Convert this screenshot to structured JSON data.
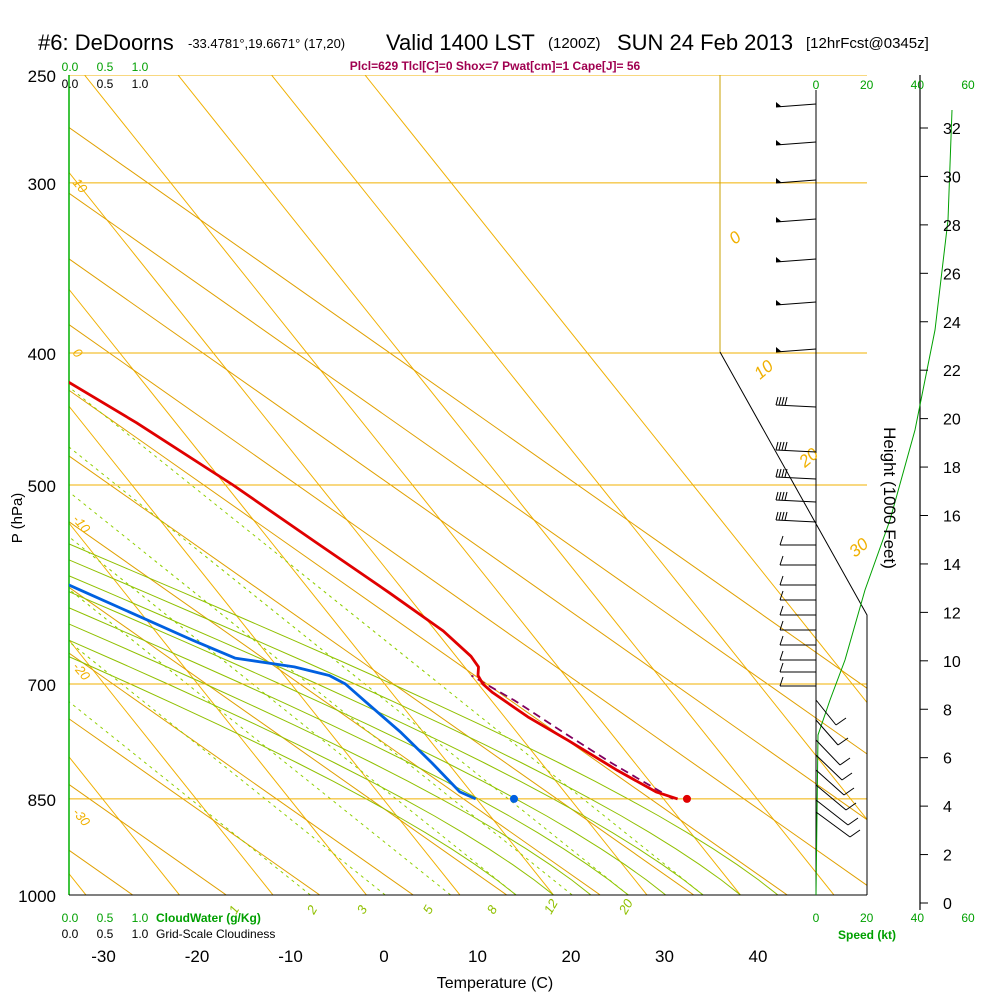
{
  "header": {
    "station": "#6: DeDoorns",
    "coords": "-33.4781°,19.6671° (17,20)",
    "valid": "Valid 1400 LST",
    "utc": "(1200Z)",
    "date": "SUN 24 Feb 2013",
    "forecast": "[12hrFcst@0345z]",
    "params": "Plcl=629 Tlcl[C]=0 Shox=7 Pwat[cm]=1 Cape[J]= 56"
  },
  "colors": {
    "isotherm": "#f0b000",
    "adiabat": "#e0a000",
    "moist_adiabat": "#90c000",
    "mixing": "#90d000",
    "temperature": "#e00000",
    "dewpoint": "#0060e0",
    "parcel": "#800060",
    "green": "#00a000",
    "params_text": "#a00050"
  },
  "chart_data": {
    "type": "skew-t",
    "title": "#6: DeDoorns -33.4781°,19.6671° (17,20) Valid 1400 LST (1200Z) SUN 24 Feb 2013 [12hrFcst@0345z]",
    "xlabel": "Temperature (C)",
    "ylabel": "P (hPa)",
    "y2label": "Height (1000 Feet)",
    "pressure_ticks": [
      "250",
      "300",
      "400",
      "500",
      "700",
      "850",
      "1000"
    ],
    "pressure_values": [
      250,
      300,
      400,
      500,
      700,
      850,
      1000
    ],
    "temp_ticks": [
      "-30",
      "-20",
      "-10",
      "0",
      "10",
      "20",
      "30",
      "40"
    ],
    "temp_values": [
      -30,
      -20,
      -10,
      0,
      10,
      20,
      30,
      40
    ],
    "height_ticks": [
      "0",
      "2",
      "4",
      "6",
      "8",
      "10",
      "12",
      "14",
      "16",
      "18",
      "20",
      "22",
      "24",
      "26",
      "28",
      "30",
      "32"
    ],
    "height_values": [
      0,
      2,
      4,
      6,
      8,
      10,
      12,
      14,
      16,
      18,
      20,
      22,
      24,
      26,
      28,
      30,
      32
    ],
    "isotherm_labels": [
      {
        "text": "10",
        "temp": -10,
        "p": 300
      },
      {
        "text": "0",
        "temp": 0,
        "p": 400
      },
      {
        "text": "-10",
        "temp": -10,
        "p": 530
      },
      {
        "text": "-20",
        "temp": -20,
        "p": 680
      },
      {
        "text": "-30",
        "temp": -30,
        "p": 870
      }
    ],
    "adiabat_labels": [
      "0",
      "10",
      "20",
      "30"
    ],
    "mixing_labels": [
      "1",
      "2",
      "3",
      "5",
      "8",
      "12",
      "20"
    ],
    "temperature": [
      {
        "p": 850,
        "t": 31.5
      },
      {
        "p": 840,
        "t": 29.8
      },
      {
        "p": 810,
        "t": 27.5
      },
      {
        "p": 770,
        "t": 24.8
      },
      {
        "p": 740,
        "t": 22.5
      },
      {
        "p": 710,
        "t": 20.8
      },
      {
        "p": 700,
        "t": 20.5
      },
      {
        "p": 690,
        "t": 20.7
      },
      {
        "p": 680,
        "t": 21.5
      },
      {
        "p": 668,
        "t": 21.6
      },
      {
        "p": 640,
        "t": 20.8
      },
      {
        "p": 600,
        "t": 18.3
      },
      {
        "p": 550,
        "t": 14.7
      },
      {
        "p": 500,
        "t": 10.8
      },
      {
        "p": 450,
        "t": 5.8
      },
      {
        "p": 400,
        "t": -0.7
      },
      {
        "p": 350,
        "t": -8.7
      },
      {
        "p": 300,
        "t": -19.0
      },
      {
        "p": 265,
        "t": -27.8
      }
    ],
    "dewpoint": [
      {
        "p": 850,
        "t": 9.9
      },
      {
        "p": 840,
        "t": 8.8
      },
      {
        "p": 800,
        "t": 8.3
      },
      {
        "p": 760,
        "t": 7.6
      },
      {
        "p": 720,
        "t": 6.4
      },
      {
        "p": 700,
        "t": 5.8
      },
      {
        "p": 690,
        "t": 4.8
      },
      {
        "p": 680,
        "t": 1.8
      },
      {
        "p": 670,
        "t": -3.8
      },
      {
        "p": 650,
        "t": -6.8
      },
      {
        "p": 600,
        "t": -14.1
      },
      {
        "p": 550,
        "t": -22.1
      },
      {
        "p": 500,
        "t": -27.2
      },
      {
        "p": 450,
        "t": -33.4
      },
      {
        "p": 420,
        "t": -37.0
      },
      {
        "p": 400,
        "t": -38.9
      },
      {
        "p": 375,
        "t": -37.3
      },
      {
        "p": 350,
        "t": -40.7
      },
      {
        "p": 330,
        "t": -42.6
      },
      {
        "p": 300,
        "t": -48.0
      },
      {
        "p": 265,
        "t": -54.0
      }
    ],
    "parcel": [
      {
        "p": 850,
        "t": 31.0
      },
      {
        "p": 800,
        "t": 27.5
      },
      {
        "p": 760,
        "t": 25.0
      },
      {
        "p": 720,
        "t": 22.5
      },
      {
        "p": 700,
        "t": 20.8
      },
      {
        "p": 690,
        "t": 20.0
      }
    ],
    "surface_temperature": {
      "p": 850,
      "t": 32.5
    },
    "surface_dewpoint": {
      "p": 850,
      "t": 14.0
    },
    "standard_atmosphere": [
      {
        "h": 0,
        "speed": 60
      },
      {
        "h": 4.5,
        "speed": 60
      },
      {
        "h": 10,
        "speed": 48
      },
      {
        "h": 13,
        "speed": 40
      },
      {
        "h": 17,
        "speed": 40
      },
      {
        "h": 20,
        "speed": 40
      },
      {
        "h": 24,
        "speed": 40
      },
      {
        "h": 27,
        "speed": 40
      },
      {
        "h": 33,
        "speed": 40
      }
    ],
    "cloudwater_ticks": [
      "0.0",
      "0.5",
      "1.0"
    ],
    "cloudiness_ticks": [
      "0.0",
      "0.5",
      "1.0"
    ],
    "speed_ticks": [
      "0",
      "20",
      "40",
      "60"
    ],
    "speed_values": [
      0,
      20,
      40,
      60
    ],
    "cloudwater_label": "CloudWater (g/Kg)",
    "cloudiness_label": "Grid-Scale Cloudiness",
    "speed_label": "Speed (kt)"
  }
}
